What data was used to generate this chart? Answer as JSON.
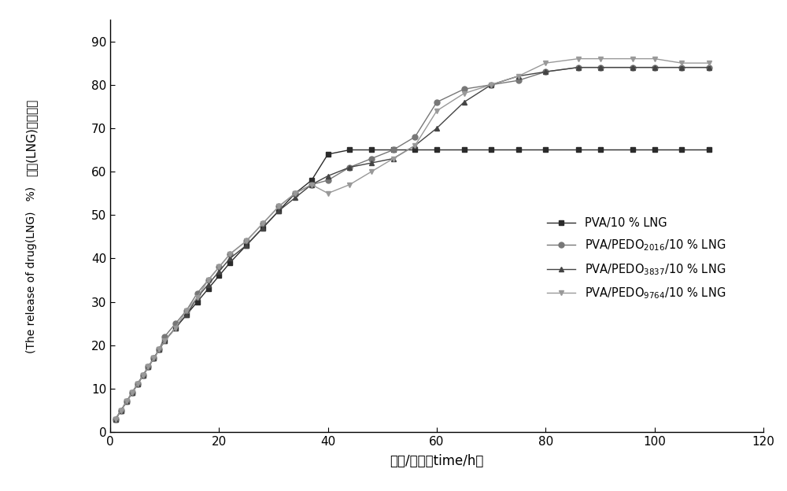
{
  "series": {
    "PVA": {
      "x": [
        1,
        2,
        3,
        4,
        5,
        6,
        7,
        8,
        9,
        10,
        12,
        14,
        16,
        18,
        20,
        22,
        25,
        28,
        31,
        34,
        37,
        40,
        44,
        48,
        52,
        56,
        60,
        65,
        70,
        75,
        80,
        86,
        90,
        96,
        100,
        105,
        110
      ],
      "y": [
        3,
        5,
        7,
        9,
        11,
        13,
        15,
        17,
        19,
        21,
        24,
        27,
        30,
        33,
        36,
        39,
        43,
        47,
        51,
        55,
        58,
        64,
        65,
        65,
        65,
        65,
        65,
        65,
        65,
        65,
        65,
        65,
        65,
        65,
        65,
        65,
        65
      ],
      "color": "#2b2b2b",
      "marker": "s",
      "label": "PVA/10 % LNG"
    },
    "PEDO2016": {
      "x": [
        1,
        2,
        3,
        4,
        5,
        6,
        7,
        8,
        9,
        10,
        12,
        14,
        16,
        18,
        20,
        22,
        25,
        28,
        31,
        34,
        37,
        40,
        44,
        48,
        52,
        56,
        60,
        65,
        70,
        75,
        80,
        86,
        90,
        96,
        100,
        105,
        110
      ],
      "y": [
        3,
        5,
        7,
        9,
        11,
        13,
        15,
        17,
        19,
        22,
        25,
        28,
        32,
        35,
        38,
        41,
        44,
        48,
        52,
        55,
        57,
        58,
        61,
        63,
        65,
        68,
        76,
        79,
        80,
        81,
        83,
        84,
        84,
        84,
        84,
        84,
        84
      ],
      "color": "#777777",
      "marker": "o",
      "label": "PVA/PEDO$_{2016}$/10 % LNG"
    },
    "PEDO3837": {
      "x": [
        1,
        2,
        3,
        4,
        5,
        6,
        7,
        8,
        9,
        10,
        12,
        14,
        16,
        18,
        20,
        22,
        25,
        28,
        31,
        34,
        37,
        40,
        44,
        48,
        52,
        56,
        60,
        65,
        70,
        75,
        80,
        86,
        90,
        96,
        100,
        105,
        110
      ],
      "y": [
        3,
        5,
        7,
        9,
        11,
        13,
        15,
        17,
        19,
        21,
        24,
        27,
        31,
        34,
        37,
        40,
        43,
        47,
        51,
        54,
        57,
        59,
        61,
        62,
        63,
        66,
        70,
        76,
        80,
        82,
        83,
        84,
        84,
        84,
        84,
        84,
        84
      ],
      "color": "#444444",
      "marker": "^",
      "label": "PVA/PEDO$_{3837}$/10 % LNG"
    },
    "PEDO9764": {
      "x": [
        1,
        2,
        3,
        4,
        5,
        6,
        7,
        8,
        9,
        10,
        12,
        14,
        16,
        18,
        20,
        22,
        25,
        28,
        31,
        34,
        37,
        40,
        44,
        48,
        52,
        56,
        60,
        65,
        70,
        75,
        80,
        86,
        90,
        96,
        100,
        105,
        110
      ],
      "y": [
        3,
        5,
        7,
        9,
        11,
        13,
        15,
        17,
        19,
        21,
        24,
        28,
        31,
        35,
        38,
        41,
        44,
        48,
        52,
        55,
        57,
        55,
        57,
        60,
        63,
        66,
        74,
        78,
        80,
        82,
        85,
        86,
        86,
        86,
        86,
        85,
        85
      ],
      "color": "#999999",
      "marker": "v",
      "label": "PVA/PEDO$_{9764}$/10 % LNG"
    }
  },
  "xlabel": "时间/小时（time/h）",
  "ylabel_line1": "药物(LNG)释放率％",
  "ylabel_line2": "(The release of drug(LNG)   %)",
  "xlim": [
    0,
    120
  ],
  "ylim": [
    0,
    95
  ],
  "xticks": [
    0,
    20,
    40,
    60,
    80,
    100,
    120
  ],
  "yticks": [
    0,
    10,
    20,
    30,
    40,
    50,
    60,
    70,
    80,
    90
  ],
  "linewidth": 1.0,
  "markersize": 5
}
